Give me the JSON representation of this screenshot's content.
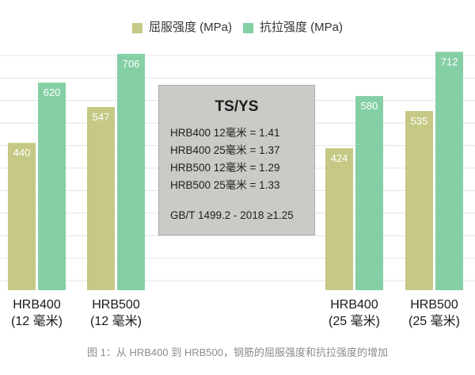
{
  "chart_data": {
    "type": "bar",
    "categories": [
      "HRB400 (12 毫米)",
      "HRB500 (12 毫米)",
      "HRB400 (25 毫米)",
      "HRB500 (25 毫米)"
    ],
    "series": [
      {
        "name": "屈服强度 (MPa)",
        "values": [
          440,
          547,
          424,
          535
        ],
        "color": "#c6c985"
      },
      {
        "name": "抗拉强度 (MPa)",
        "values": [
          620,
          706,
          580,
          712
        ],
        "color": "#85cfa4"
      }
    ],
    "ylim": [
      0,
      720
    ],
    "grid": true,
    "legend": "top-center",
    "data_labels": true,
    "annotation": {
      "title": "TS/YS",
      "lines": [
        "HRB400 12毫米 = 1.41",
        "HRB400 25毫米 = 1.37",
        "HRB500 12毫米 = 1.29",
        "HRB500 25毫米 = 1.33"
      ],
      "note": "GB/T 1499.2 - 2018 ≥1.25"
    },
    "caption": "图 1：从 HRB400 到 HRB500，钢筋的屈服强度和抗拉强度的增加"
  },
  "colors": {
    "annotation_background": "#c8cbc6",
    "annotation_border": "#a9aca7",
    "caption_text": "#8c8c8c",
    "bar_label_text": "#ffffff",
    "gridline": "#e4e4e4"
  }
}
